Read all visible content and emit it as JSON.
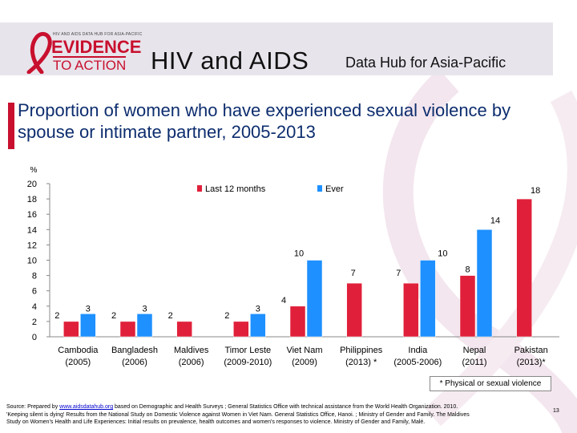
{
  "header": {
    "logo_small": "HIV AND AIDS DATA HUB FOR ASIA-PACIFIC",
    "logo_line1": "EVIDENCE",
    "logo_line2": "TO ACTION",
    "title": "HIV and AIDS",
    "subtitle": "Data Hub for Asia-Pacific"
  },
  "colors": {
    "last12": "#e0203a",
    "ever": "#1e90ff",
    "title": "#0d2d6e",
    "accent": "#c8102e"
  },
  "chart_data": {
    "type": "bar",
    "title": "Proportion of women who have experienced sexual violence by spouse or intimate partner, 2005-2013",
    "ylabel": "%",
    "ylim": [
      0,
      20
    ],
    "yticks": [
      0,
      2,
      4,
      6,
      8,
      10,
      12,
      14,
      16,
      18,
      20
    ],
    "grid": false,
    "legend_position": "top",
    "categories": [
      {
        "name": "Cambodia",
        "year": "(2005)"
      },
      {
        "name": "Bangladesh",
        "year": "(2006)"
      },
      {
        "name": "Maldives",
        "year": "(2006)"
      },
      {
        "name": "Timor Leste",
        "year": "(2009-2010)"
      },
      {
        "name": "Viet Nam",
        "year": "(2009)"
      },
      {
        "name": "Philippines",
        "year": "(2013) *"
      },
      {
        "name": "India",
        "year": "(2005-2006)"
      },
      {
        "name": "Nepal",
        "year": "(2011)"
      },
      {
        "name": "Pakistan",
        "year": "(2013)*"
      }
    ],
    "series": [
      {
        "name": "Last 12 months",
        "values": [
          2,
          2,
          2,
          2,
          4,
          7,
          7,
          8,
          18
        ],
        "labels": [
          "2",
          "2",
          "2",
          "2",
          "4",
          "7",
          "7",
          "8",
          "18"
        ]
      },
      {
        "name": "Ever",
        "values": [
          3,
          3,
          null,
          3,
          10,
          null,
          10,
          14,
          null
        ],
        "labels": [
          "3",
          "3",
          "",
          "3",
          "10",
          "",
          "10",
          "14",
          ""
        ]
      }
    ]
  },
  "footnote": "* Physical or sexual violence",
  "sources": {
    "prefix": "Source: Prepared by ",
    "link": "www.aidsdatahub.org",
    "line1_rest": " based on Demographic and Health Surveys ; General Statistics Office with technical assistance from the World Health Organization. 2010.",
    "line2": "'Keeping silent is dying' Results from the National Study on Domestic Violence against Women in Viet Nam. General Statistics Office, Hanoi. ; Ministry of Gender and Family. The Maldives",
    "line3": "Study on Women's Health and Life Experiences: Initial results on prevalence, health outcomes and women's responses to violence. Ministry of Gender and Family, Malé."
  },
  "page_number": "13"
}
